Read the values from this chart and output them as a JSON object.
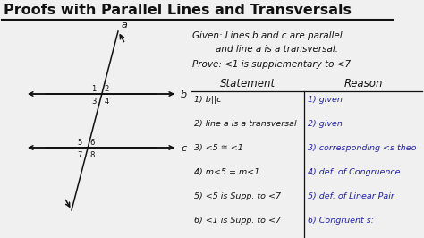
{
  "title": "Proofs with Parallel Lines and Transversals",
  "background_color": "#f0f0f0",
  "title_fontsize": 11.5,
  "given_line1": "Given: Lines b and c are parallel",
  "given_line2": "        and line a is a transversal.",
  "prove_text": "Prove: <1 is supplementary to <7",
  "statement_header": "Statement",
  "reason_header": "Reason",
  "statements": [
    "1) b||c",
    "2) line a is a transversal",
    "3) <5 ≅ <1",
    "4) m<5 = m<1",
    "5) <5 is Supp. to <7",
    "6) <1 is Supp. to <7"
  ],
  "reasons": [
    "1) given",
    "2) given",
    "3) corresponding <s theo",
    "4) def. of Congruence",
    "5) def. of Linear Pair",
    "6) Congruent s:"
  ],
  "reason_color": "#2222aa",
  "text_color": "#111111",
  "diagram_color": "#111111",
  "figsize": [
    4.74,
    2.66
  ],
  "dpi": 100
}
